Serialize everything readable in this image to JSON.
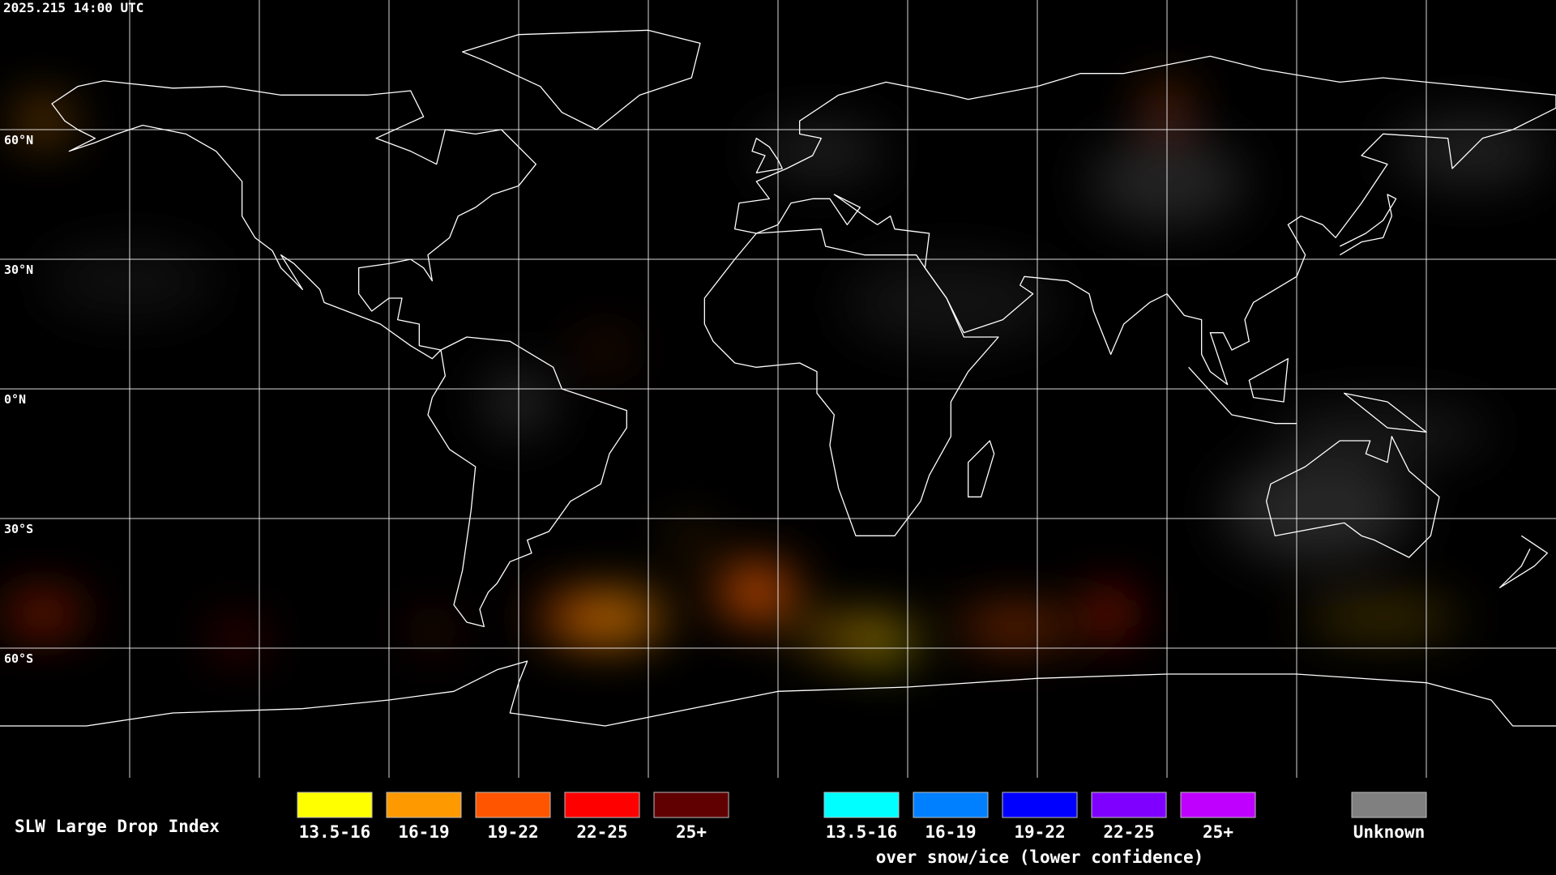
{
  "header": {
    "timestamp": "2025.215 14:00 UTC"
  },
  "map": {
    "latitude_labels": [
      "60°N",
      "30°N",
      "0°N",
      "30°S",
      "60°S"
    ]
  },
  "legend": {
    "title": "SLW Large Drop Index",
    "groups": [
      {
        "items": [
          {
            "label": "13.5-16",
            "color": "#ffff00"
          },
          {
            "label": "16-19",
            "color": "#ff9900"
          },
          {
            "label": "19-22",
            "color": "#ff5500"
          },
          {
            "label": "22-25",
            "color": "#ff0000"
          },
          {
            "label": "25+",
            "color": "#600000"
          }
        ]
      },
      {
        "items": [
          {
            "label": "13.5-16",
            "color": "#00ffff"
          },
          {
            "label": "16-19",
            "color": "#0080ff"
          },
          {
            "label": "19-22",
            "color": "#0000ff"
          },
          {
            "label": "22-25",
            "color": "#8000ff"
          },
          {
            "label": "25+",
            "color": "#c000ff"
          }
        ],
        "caption": "over snow/ice (lower confidence)"
      },
      {
        "items": [
          {
            "label": "Unknown",
            "color": "#808080"
          }
        ]
      }
    ]
  }
}
